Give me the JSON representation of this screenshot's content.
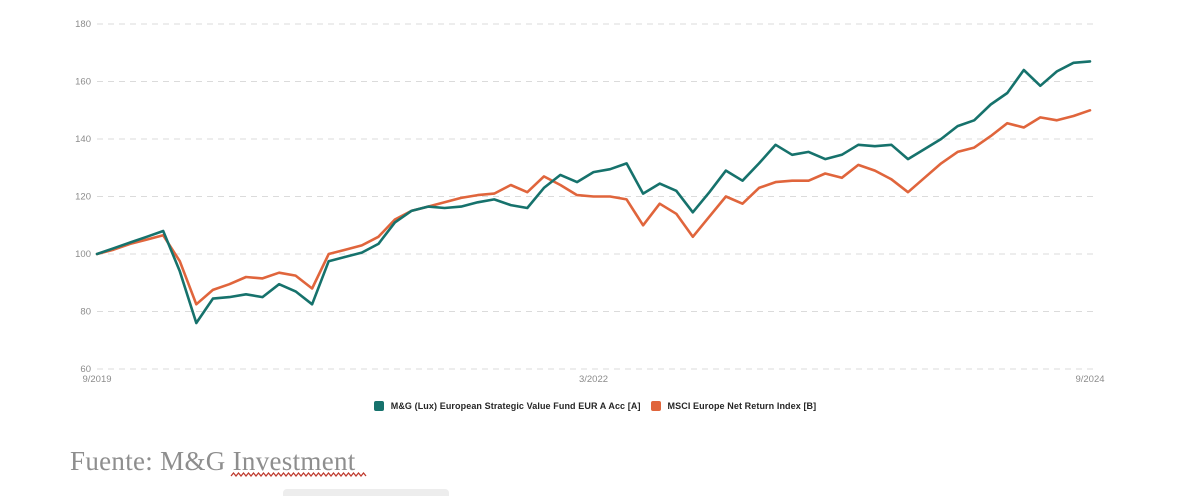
{
  "chart_data": {
    "type": "line",
    "title": "",
    "xlabel": "",
    "ylabel": "",
    "x_axis": {
      "frequency": "monthly",
      "start": "9/2019",
      "end": "9/2024",
      "tick_labels": [
        {
          "month_index": 0,
          "label": "9/2019"
        },
        {
          "month_index": 30,
          "label": "3/2022"
        },
        {
          "month_index": 60,
          "label": "9/2024"
        }
      ]
    },
    "y_axis": {
      "min": 60,
      "max": 180,
      "ticks": [
        180,
        160,
        140,
        120,
        100,
        80,
        60
      ],
      "gridlines": "dashed-horizontal"
    },
    "legend_position": "bottom-center",
    "series": [
      {
        "name": "M&G (Lux) European Strategic Value Fund EUR A Acc [A]",
        "color": "#16726C",
        "values": [
          100,
          102,
          104,
          106,
          108,
          94,
          76,
          84.5,
          85,
          86,
          85,
          89.5,
          87,
          82.5,
          97.5,
          99,
          100.5,
          103.5,
          111,
          115,
          116.5,
          116,
          116.5,
          118,
          119,
          117,
          116,
          123,
          127.5,
          125,
          128.5,
          129.5,
          131.5,
          121,
          124.5,
          122,
          114.5,
          121.5,
          129,
          125.5,
          131.5,
          138,
          134.5,
          135.5,
          133,
          134.5,
          138,
          137.5,
          138,
          133,
          136.5,
          140,
          144.5,
          146.5,
          152,
          156,
          164,
          158.5,
          163.5,
          166.5,
          167
        ]
      },
      {
        "name": "MSCI Europe Net Return Index [B]",
        "color": "#E0653C",
        "values": [
          100,
          101.5,
          103.5,
          105,
          106.5,
          97.5,
          82.5,
          87.5,
          89.5,
          92,
          91.5,
          93.5,
          92.5,
          88,
          100,
          101.5,
          103,
          106,
          112,
          115,
          116.5,
          118,
          119.5,
          120.5,
          121,
          124,
          121.5,
          127,
          124,
          120.5,
          120,
          120,
          119,
          110,
          117.5,
          114,
          106,
          113,
          120,
          117.5,
          123,
          125,
          125.5,
          125.5,
          128,
          126.5,
          131,
          129,
          126,
          121.5,
          126.5,
          131.5,
          135.5,
          137,
          141,
          145.5,
          144,
          147.5,
          146.5,
          148,
          150
        ]
      }
    ]
  },
  "caption": {
    "prefix": "Fuente: M&G ",
    "underlined_word": "Investment",
    "text_color": "#8E8E8E",
    "squiggle_color": "#BF3A2E"
  },
  "colors": {
    "background": "#FFFFFF",
    "grid": "#DBDBDB",
    "axis_text": "#8C8C8C",
    "legend_text": "#262626"
  }
}
